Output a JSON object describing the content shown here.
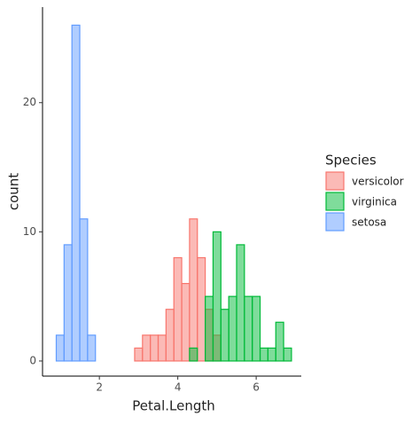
{
  "chart_data": {
    "type": "histogram",
    "x_label": "Petal.Length",
    "y_label": "count",
    "legend_title": "Species",
    "bins": [
      0.9,
      1.1,
      1.3,
      1.5,
      1.7,
      1.9,
      2.1,
      2.3,
      2.5,
      2.7,
      2.9,
      3.1,
      3.3,
      3.5,
      3.7,
      3.9,
      4.1,
      4.3,
      4.5,
      4.7,
      4.9,
      5.1,
      5.3,
      5.5,
      5.7,
      5.9,
      6.1,
      6.3,
      6.5,
      6.7,
      6.9
    ],
    "series": [
      {
        "name": "versicolor",
        "color": "#F8766D",
        "values": [
          0,
          0,
          0,
          0,
          0,
          0,
          0,
          0,
          0,
          0,
          1,
          2,
          2,
          2,
          4,
          8,
          6,
          11,
          8,
          4,
          2,
          0,
          0,
          0,
          0,
          0,
          0,
          0,
          0,
          0
        ]
      },
      {
        "name": "virginica",
        "color": "#00BA38",
        "values": [
          0,
          0,
          0,
          0,
          0,
          0,
          0,
          0,
          0,
          0,
          0,
          0,
          0,
          0,
          0,
          0,
          0,
          1,
          0,
          5,
          10,
          4,
          5,
          9,
          5,
          5,
          1,
          1,
          3,
          1
        ]
      },
      {
        "name": "setosa",
        "color": "#619CFF",
        "values": [
          2,
          9,
          26,
          11,
          2,
          0,
          0,
          0,
          0,
          0,
          0,
          0,
          0,
          0,
          0,
          0,
          0,
          0,
          0,
          0,
          0,
          0,
          0,
          0,
          0,
          0,
          0,
          0,
          0,
          0
        ]
      }
    ],
    "xlim": [
      0.55,
      7.15
    ],
    "ylim": [
      -1.17,
      27.4
    ],
    "xticks": [
      2,
      4,
      6
    ],
    "yticks": [
      0,
      10,
      20
    ]
  }
}
